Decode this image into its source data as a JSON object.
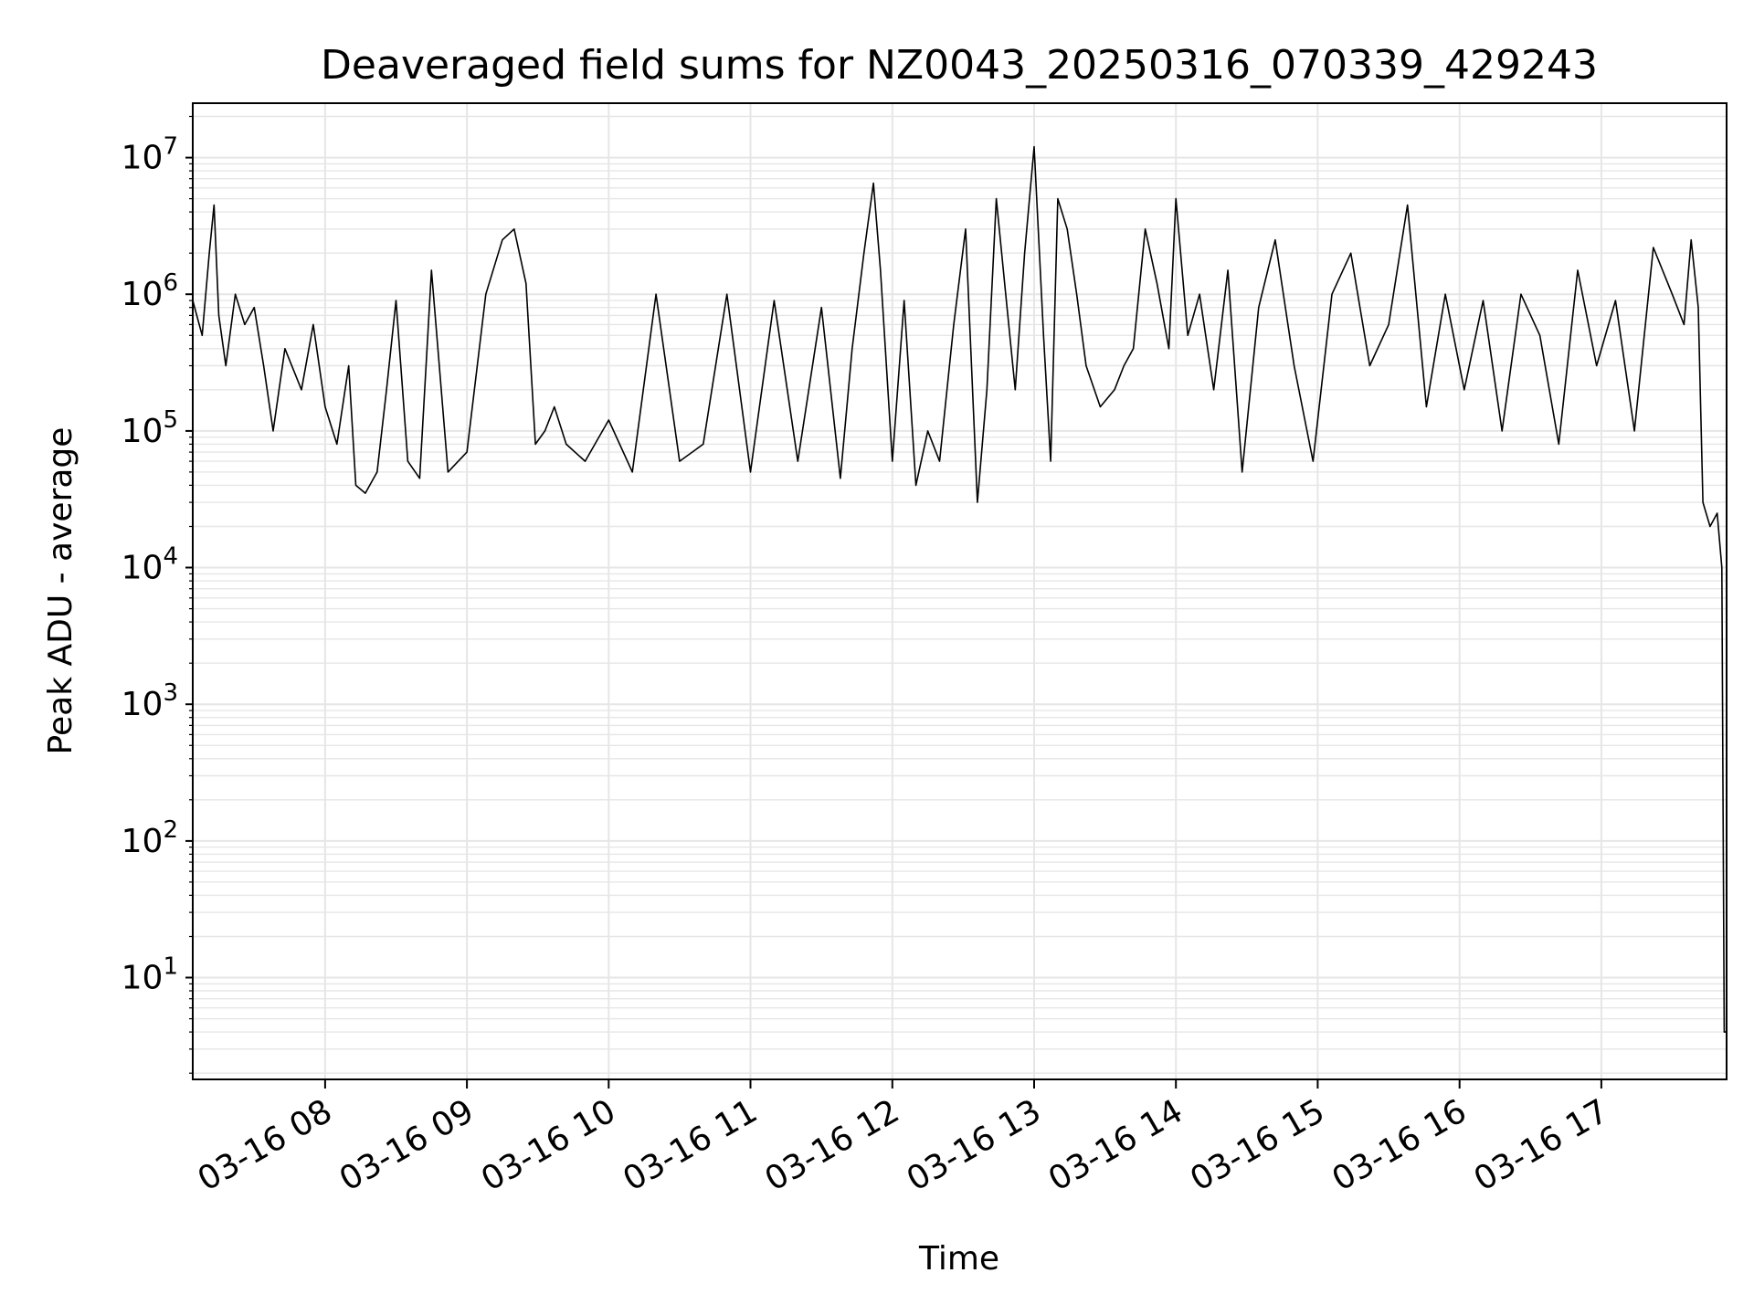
{
  "chart_data": {
    "type": "line",
    "title": "Deaveraged field sums for NZ0043_20250316_070339_429243",
    "xlabel": "Time",
    "ylabel": "Peak ADU - average",
    "yscale": "log",
    "ylim": [
      1.8,
      25000000
    ],
    "xlim": [
      "2025-03-16 07:04",
      "2025-03-16 17:53"
    ],
    "grid": true,
    "x_ticks": [
      "03-16 08",
      "03-16 09",
      "03-16 10",
      "03-16 11",
      "03-16 12",
      "03-16 13",
      "03-16 14",
      "03-16 15",
      "03-16 16",
      "03-16 17"
    ],
    "y_ticks": [
      {
        "base": "10",
        "exp": "1",
        "value": 10
      },
      {
        "base": "10",
        "exp": "2",
        "value": 100
      },
      {
        "base": "10",
        "exp": "3",
        "value": 1000
      },
      {
        "base": "10",
        "exp": "4",
        "value": 10000
      },
      {
        "base": "10",
        "exp": "5",
        "value": 100000
      },
      {
        "base": "10",
        "exp": "6",
        "value": 1000000
      },
      {
        "base": "10",
        "exp": "7",
        "value": 10000000
      }
    ],
    "line_color": "#000000",
    "grid_color": "#e6e6e6",
    "series": [
      {
        "x": [
          "2025-03-16 07:04",
          "2025-03-16 07:08",
          "2025-03-16 07:11",
          "2025-03-16 07:13",
          "2025-03-16 07:15",
          "2025-03-16 07:18",
          "2025-03-16 07:22",
          "2025-03-16 07:26",
          "2025-03-16 07:30",
          "2025-03-16 07:34",
          "2025-03-16 07:38",
          "2025-03-16 07:43",
          "2025-03-16 07:50",
          "2025-03-16 07:55",
          "2025-03-16 08:00",
          "2025-03-16 08:05",
          "2025-03-16 08:10",
          "2025-03-16 08:13",
          "2025-03-16 08:17",
          "2025-03-16 08:22",
          "2025-03-16 08:26",
          "2025-03-16 08:30",
          "2025-03-16 08:35",
          "2025-03-16 08:40",
          "2025-03-16 08:45",
          "2025-03-16 08:52",
          "2025-03-16 09:00",
          "2025-03-16 09:08",
          "2025-03-16 09:15",
          "2025-03-16 09:20",
          "2025-03-16 09:25",
          "2025-03-16 09:29",
          "2025-03-16 09:33",
          "2025-03-16 09:37",
          "2025-03-16 09:42",
          "2025-03-16 09:50",
          "2025-03-16 10:00",
          "2025-03-16 10:10",
          "2025-03-16 10:20",
          "2025-03-16 10:30",
          "2025-03-16 10:40",
          "2025-03-16 10:50",
          "2025-03-16 11:00",
          "2025-03-16 11:10",
          "2025-03-16 11:20",
          "2025-03-16 11:30",
          "2025-03-16 11:38",
          "2025-03-16 11:43",
          "2025-03-16 11:48",
          "2025-03-16 11:52",
          "2025-03-16 11:55",
          "2025-03-16 12:00",
          "2025-03-16 12:05",
          "2025-03-16 12:10",
          "2025-03-16 12:15",
          "2025-03-16 12:20",
          "2025-03-16 12:26",
          "2025-03-16 12:31",
          "2025-03-16 12:36",
          "2025-03-16 12:40",
          "2025-03-16 12:44",
          "2025-03-16 12:48",
          "2025-03-16 12:52",
          "2025-03-16 12:56",
          "2025-03-16 13:00",
          "2025-03-16 13:04",
          "2025-03-16 13:07",
          "2025-03-16 13:10",
          "2025-03-16 13:14",
          "2025-03-16 13:18",
          "2025-03-16 13:22",
          "2025-03-16 13:28",
          "2025-03-16 13:34",
          "2025-03-16 13:38",
          "2025-03-16 13:42",
          "2025-03-16 13:47",
          "2025-03-16 13:52",
          "2025-03-16 13:57",
          "2025-03-16 14:00",
          "2025-03-16 14:05",
          "2025-03-16 14:10",
          "2025-03-16 14:16",
          "2025-03-16 14:22",
          "2025-03-16 14:28",
          "2025-03-16 14:35",
          "2025-03-16 14:42",
          "2025-03-16 14:50",
          "2025-03-16 14:58",
          "2025-03-16 15:06",
          "2025-03-16 15:14",
          "2025-03-16 15:22",
          "2025-03-16 15:30",
          "2025-03-16 15:38",
          "2025-03-16 15:46",
          "2025-03-16 15:54",
          "2025-03-16 16:02",
          "2025-03-16 16:10",
          "2025-03-16 16:18",
          "2025-03-16 16:26",
          "2025-03-16 16:34",
          "2025-03-16 16:42",
          "2025-03-16 16:50",
          "2025-03-16 16:58",
          "2025-03-16 17:06",
          "2025-03-16 17:14",
          "2025-03-16 17:22",
          "2025-03-16 17:30",
          "2025-03-16 17:35",
          "2025-03-16 17:38",
          "2025-03-16 17:41",
          "2025-03-16 17:43",
          "2025-03-16 17:46",
          "2025-03-16 17:49",
          "2025-03-16 17:51",
          "2025-03-16 17:52",
          "2025-03-16 17:53"
        ],
        "y": [
          900000,
          500000,
          2000000,
          4500000,
          700000,
          300000,
          1000000,
          600000,
          800000,
          300000,
          100000,
          400000,
          200000,
          600000,
          150000,
          80000,
          300000,
          40000,
          35000,
          50000,
          200000,
          900000,
          60000,
          45000,
          1500000,
          50000,
          70000,
          1000000,
          2500000,
          3000000,
          1200000,
          80000,
          100000,
          150000,
          80000,
          60000,
          120000,
          50000,
          1000000,
          60000,
          80000,
          1000000,
          50000,
          900000,
          60000,
          800000,
          45000,
          400000,
          2000000,
          6500000,
          1500000,
          60000,
          900000,
          40000,
          100000,
          60000,
          600000,
          3000000,
          30000,
          200000,
          5000000,
          1000000,
          200000,
          2000000,
          12000000,
          500000,
          60000,
          5000000,
          3000000,
          1000000,
          300000,
          150000,
          200000,
          300000,
          400000,
          3000000,
          1200000,
          400000,
          5000000,
          500000,
          1000000,
          200000,
          1500000,
          50000,
          800000,
          2500000,
          300000,
          60000,
          1000000,
          2000000,
          300000,
          600000,
          4500000,
          150000,
          1000000,
          200000,
          900000,
          100000,
          1000000,
          500000,
          80000,
          1500000,
          300000,
          900000,
          100000,
          2200000,
          1000000,
          600000,
          2500000,
          800000,
          30000,
          20000,
          25000,
          10000,
          4,
          4
        ]
      }
    ]
  }
}
